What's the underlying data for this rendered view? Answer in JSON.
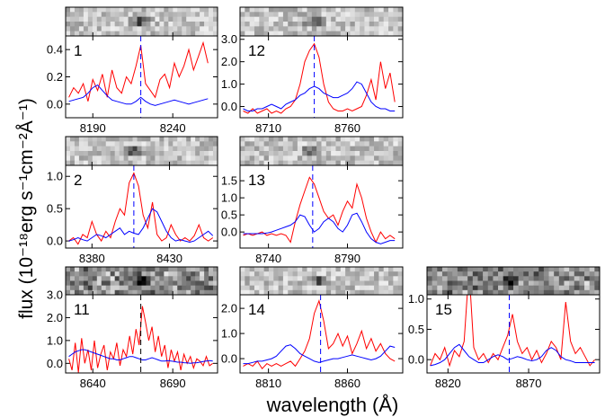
{
  "xlabel": "wavelength (Å)",
  "ylabel": "flux (10⁻¹⁸erg s⁻¹cm⁻²Å⁻¹)",
  "chart_data": [
    {
      "type": "line",
      "title": "1",
      "x": [
        8175,
        8178,
        8181,
        8184,
        8187,
        8190,
        8193,
        8196,
        8199,
        8202,
        8205,
        8208,
        8211,
        8214,
        8217,
        8220,
        8223,
        8226,
        8229,
        8232,
        8235,
        8238,
        8241,
        8244,
        8247,
        8250,
        8253,
        8256,
        8259,
        8262
      ],
      "series": [
        {
          "color": "#ff0000",
          "values": [
            0.05,
            0.12,
            0.08,
            0.15,
            0.02,
            0.18,
            0.1,
            0.22,
            0.05,
            0.25,
            0.12,
            0.08,
            0.2,
            0.15,
            0.28,
            0.43,
            0.15,
            0.1,
            0.05,
            0.18,
            0.22,
            0.12,
            0.3,
            0.2,
            0.28,
            0.4,
            0.25,
            0.35,
            0.45,
            0.3
          ]
        },
        {
          "color": "#0000ff",
          "values": [
            0.02,
            0.03,
            0.04,
            0.05,
            0.08,
            0.12,
            0.14,
            0.1,
            0.06,
            0.03,
            0.02,
            0.01,
            0.0,
            0.0,
            0.02,
            0.05,
            0.02,
            0.0,
            -0.01,
            0.0,
            0.01,
            0.02,
            0.03,
            0.02,
            0.01,
            0.0,
            0.01,
            0.02,
            0.03,
            0.04
          ]
        }
      ],
      "xlim": [
        8173,
        8268
      ],
      "ylim": [
        -0.1,
        0.5
      ],
      "xticks": [
        8190,
        8240
      ],
      "yticks": [
        {
          "value": 0,
          "label": "0.0"
        },
        0.2,
        0.4
      ],
      "line_center": 8220,
      "line_color": "#0000ff"
    },
    {
      "type": "line",
      "title": "12",
      "x": [
        8694,
        8697,
        8700,
        8703,
        8706,
        8709,
        8712,
        8715,
        8718,
        8721,
        8724,
        8727,
        8730,
        8733,
        8736,
        8739,
        8742,
        8745,
        8748,
        8751,
        8754,
        8757,
        8760,
        8763,
        8766,
        8769,
        8772,
        8775,
        8778,
        8781,
        8784,
        8787,
        8790
      ],
      "series": [
        {
          "color": "#ff0000",
          "values": [
            -0.2,
            -0.3,
            -0.1,
            -0.3,
            -0.2,
            -0.1,
            -0.3,
            -0.2,
            -0.3,
            -0.1,
            0.0,
            0.3,
            1.0,
            2.0,
            2.5,
            2.8,
            2.2,
            1.0,
            0.2,
            -0.1,
            -0.2,
            -0.2,
            -0.1,
            -0.2,
            -0.1,
            0.0,
            0.5,
            1.2,
            0.3,
            2.0,
            0.8,
            1.5,
            0.2
          ]
        },
        {
          "color": "#0000ff",
          "values": [
            -0.1,
            -0.2,
            -0.2,
            -0.1,
            -0.1,
            0.0,
            0.1,
            0.0,
            -0.1,
            0.1,
            0.2,
            0.3,
            0.5,
            0.6,
            0.8,
            0.9,
            0.8,
            0.6,
            0.5,
            0.4,
            0.4,
            0.5,
            0.6,
            0.8,
            1.1,
            1.0,
            0.6,
            0.2,
            0.0,
            -0.1,
            -0.1,
            -0.2,
            -0.2
          ]
        }
      ],
      "xlim": [
        8692,
        8795
      ],
      "ylim": [
        -0.5,
        3.15
      ],
      "xticks": [
        8710,
        8760
      ],
      "yticks": [
        {
          "value": 0,
          "label": "0.0"
        },
        {
          "value": 1,
          "label": "1.0"
        },
        {
          "value": 2,
          "label": "2.0"
        },
        {
          "value": 3,
          "label": "3.0"
        }
      ],
      "line_center": 8739,
      "line_color": "#0000ff"
    },
    {
      "type": "line",
      "title": "2",
      "x": [
        8365,
        8368,
        8371,
        8374,
        8377,
        8380,
        8383,
        8386,
        8389,
        8392,
        8395,
        8398,
        8401,
        8404,
        8407,
        8410,
        8413,
        8416,
        8419,
        8422,
        8425,
        8428,
        8431,
        8434,
        8437,
        8440,
        8443,
        8446,
        8449,
        8452,
        8455,
        8458
      ],
      "series": [
        {
          "color": "#ff0000",
          "values": [
            0.0,
            0.05,
            -0.05,
            0.1,
            0.05,
            0.3,
            0.1,
            0.0,
            0.15,
            0.05,
            0.3,
            0.5,
            0.4,
            0.9,
            1.05,
            0.85,
            0.4,
            0.2,
            0.6,
            0.1,
            0.0,
            0.05,
            0.25,
            0.1,
            0.0,
            0.05,
            0.0,
            0.08,
            0.25,
            0.05,
            0.0,
            0.05
          ]
        },
        {
          "color": "#0000ff",
          "values": [
            0.0,
            0.02,
            0.05,
            0.02,
            0.0,
            0.05,
            0.1,
            0.08,
            0.05,
            0.1,
            0.15,
            0.2,
            0.1,
            0.15,
            0.12,
            0.1,
            0.2,
            0.35,
            0.5,
            0.45,
            0.3,
            0.15,
            0.05,
            0.0,
            0.02,
            0.0,
            -0.02,
            0.0,
            0.05,
            0.1,
            0.15,
            0.08
          ]
        }
      ],
      "xlim": [
        8363,
        8461
      ],
      "ylim": [
        -0.11,
        1.17
      ],
      "xticks": [
        8380,
        8430
      ],
      "yticks": [
        {
          "value": 0,
          "label": "0.0"
        },
        0.5,
        {
          "value": 1,
          "label": "1.0"
        }
      ],
      "line_center": 8407,
      "line_color": "#0000ff"
    },
    {
      "type": "line",
      "title": "13",
      "x": [
        8724,
        8727,
        8730,
        8733,
        8736,
        8739,
        8742,
        8745,
        8748,
        8751,
        8754,
        8757,
        8760,
        8763,
        8766,
        8769,
        8772,
        8775,
        8778,
        8781,
        8784,
        8787,
        8790,
        8793,
        8796,
        8799,
        8802,
        8805,
        8808,
        8811,
        8814,
        8817,
        8820
      ],
      "series": [
        {
          "color": "#ff0000",
          "values": [
            -0.1,
            -0.05,
            -0.1,
            -0.05,
            0.0,
            -0.1,
            -0.05,
            -0.1,
            -0.05,
            -0.1,
            -0.3,
            0.3,
            0.8,
            1.2,
            1.6,
            1.4,
            1.0,
            0.6,
            0.4,
            0.5,
            0.2,
            0.6,
            0.9,
            0.7,
            1.4,
            1.0,
            0.4,
            0.0,
            -0.3,
            0.0,
            -0.2,
            -0.1,
            -0.2
          ]
        },
        {
          "color": "#0000ff",
          "values": [
            -0.05,
            -0.05,
            -0.05,
            -0.05,
            -0.05,
            -0.03,
            0.0,
            0.05,
            0.1,
            0.15,
            0.2,
            0.3,
            0.5,
            0.45,
            0.2,
            0.0,
            0.1,
            0.3,
            0.4,
            0.3,
            0.1,
            0.0,
            0.2,
            0.5,
            0.55,
            0.3,
            0.0,
            -0.2,
            -0.3,
            -0.35,
            -0.3,
            -0.25,
            -0.25
          ]
        }
      ],
      "xlim": [
        8722,
        8825
      ],
      "ylim": [
        -0.47,
        1.95
      ],
      "xticks": [
        8740,
        8790
      ],
      "yticks": [
        {
          "value": 0,
          "label": "0.0"
        },
        0.5,
        {
          "value": 1,
          "label": "1.0"
        },
        1.5
      ],
      "line_center": 8768,
      "line_color": "#0000ff"
    },
    {
      "type": "line",
      "title": "11",
      "x": [
        8625,
        8627,
        8629,
        8631,
        8633,
        8635,
        8637,
        8639,
        8641,
        8643,
        8645,
        8647,
        8649,
        8651,
        8653,
        8655,
        8657,
        8659,
        8661,
        8663,
        8665,
        8667,
        8669,
        8671,
        8673,
        8675,
        8677,
        8679,
        8681,
        8683,
        8685,
        8687,
        8689,
        8691,
        8693,
        8695,
        8697,
        8699,
        8701,
        8703,
        8705,
        8707,
        8709,
        8711,
        8713,
        8715
      ],
      "series": [
        {
          "color": "#ff0000",
          "values": [
            0.2,
            -0.3,
            0.9,
            -0.4,
            1.1,
            0.0,
            0.6,
            -0.3,
            1.0,
            -0.2,
            0.4,
            0.8,
            -0.3,
            0.5,
            0.2,
            0.9,
            -0.1,
            0.6,
            0.3,
            1.2,
            0.4,
            1.5,
            0.8,
            2.5,
            1.8,
            1.0,
            1.6,
            0.5,
            1.2,
            0.3,
            0.8,
            -0.2,
            0.6,
            0.1,
            0.5,
            -0.3,
            0.4,
            0.0,
            0.3,
            -0.2,
            0.2,
            0.1,
            -0.1,
            0.3,
            -0.1,
            0.0
          ]
        },
        {
          "color": "#0000ff",
          "values": [
            0.3,
            0.4,
            0.5,
            0.55,
            0.6,
            0.6,
            0.55,
            0.5,
            0.45,
            0.4,
            0.35,
            0.3,
            0.25,
            0.2,
            0.2,
            0.15,
            0.15,
            0.2,
            0.25,
            0.3,
            0.3,
            0.25,
            0.2,
            0.15,
            0.15,
            0.2,
            0.25,
            0.2,
            0.15,
            0.1,
            0.1,
            0.12,
            0.1,
            0.08,
            0.05,
            0.05,
            0.03,
            0.02,
            0.0,
            0.02,
            0.03,
            0.05,
            0.08,
            0.1,
            0.12,
            0.1
          ]
        }
      ],
      "xlim": [
        8623,
        8718
      ],
      "ylim": [
        -0.42,
        3.0
      ],
      "xticks": [
        8640,
        8690
      ],
      "yticks": [
        {
          "value": 0,
          "label": "0.0"
        },
        {
          "value": 1,
          "label": "1.0"
        },
        {
          "value": 2,
          "label": "2.0"
        },
        {
          "value": 3,
          "label": "3.0"
        }
      ],
      "line_center": 8670,
      "line_color": "#000000"
    },
    {
      "type": "line",
      "title": "14",
      "x": [
        8794,
        8797,
        8800,
        8803,
        8806,
        8809,
        8812,
        8815,
        8818,
        8821,
        8824,
        8827,
        8830,
        8833,
        8836,
        8839,
        8842,
        8845,
        8848,
        8851,
        8854,
        8857,
        8860,
        8863,
        8866,
        8869,
        8872,
        8875,
        8878,
        8881,
        8884,
        8887,
        8890
      ],
      "series": [
        {
          "color": "#ff0000",
          "values": [
            -0.3,
            -0.2,
            -0.3,
            -0.1,
            -0.4,
            -0.2,
            -0.3,
            -0.2,
            -0.3,
            -0.2,
            -0.1,
            -0.3,
            0.0,
            0.3,
            0.8,
            1.8,
            2.3,
            1.5,
            0.4,
            0.6,
            1.0,
            0.5,
            0.9,
            0.2,
            0.6,
            1.1,
            0.4,
            0.8,
            0.3,
            0.6,
            0.2,
            0.0,
            -0.1
          ]
        },
        {
          "color": "#0000ff",
          "values": [
            -0.2,
            -0.2,
            -0.15,
            -0.1,
            -0.1,
            -0.05,
            0.0,
            0.1,
            0.3,
            0.5,
            0.55,
            0.4,
            0.2,
            0.1,
            0.0,
            -0.1,
            -0.15,
            -0.1,
            -0.05,
            0.0,
            0.0,
            0.05,
            0.1,
            0.15,
            0.1,
            0.05,
            0.0,
            -0.05,
            0.0,
            0.1,
            0.3,
            0.5,
            0.45
          ]
        }
      ],
      "xlim": [
        8792,
        8895
      ],
      "ylim": [
        -0.57,
        2.54
      ],
      "xticks": [
        8810,
        8860
      ],
      "yticks": [
        {
          "value": 0,
          "label": "0.0"
        },
        {
          "value": 1,
          "label": "1.0"
        },
        {
          "value": 2,
          "label": "2.0"
        }
      ],
      "line_center": 8843,
      "line_color": "#0000ff"
    },
    {
      "type": "line",
      "title": "15",
      "x": [
        8809,
        8812,
        8815,
        8818,
        8821,
        8824,
        8827,
        8830,
        8833,
        8836,
        8839,
        8842,
        8845,
        8848,
        8851,
        8854,
        8857,
        8860,
        8863,
        8866,
        8869,
        8872,
        8875,
        8878,
        8881,
        8884,
        8887,
        8890,
        8893,
        8896,
        8899,
        8902,
        8905,
        8908,
        8911
      ],
      "series": [
        {
          "color": "#ff0000",
          "values": [
            -0.1,
            0.1,
            0.0,
            0.2,
            -0.1,
            0.15,
            0.05,
            0.3,
            1.5,
            0.2,
            0.0,
            0.1,
            -0.05,
            0.1,
            0.0,
            0.2,
            0.4,
            0.75,
            0.3,
            0.1,
            0.2,
            0.0,
            0.15,
            -0.05,
            0.1,
            0.3,
            0.2,
            0.0,
            0.95,
            0.3,
            0.1,
            0.2,
            0.05,
            -0.1,
            0.0
          ]
        },
        {
          "color": "#0000ff",
          "values": [
            -0.1,
            -0.08,
            -0.05,
            0.0,
            0.1,
            0.2,
            0.25,
            0.15,
            0.05,
            0.0,
            -0.05,
            -0.05,
            0.0,
            0.05,
            0.08,
            0.05,
            0.0,
            0.02,
            0.05,
            0.03,
            0.0,
            -0.02,
            0.0,
            0.05,
            0.15,
            0.2,
            0.15,
            0.05,
            0.0,
            -0.02,
            -0.05,
            -0.05,
            -0.05,
            -0.05,
            -0.05
          ]
        }
      ],
      "xlim": [
        8807,
        8914
      ],
      "ylim": [
        -0.22,
        1.07
      ],
      "xticks": [
        8820,
        8870
      ],
      "yticks": [
        {
          "value": 0,
          "label": "0.0"
        },
        0.5,
        {
          "value": 1,
          "label": "1.0"
        }
      ],
      "line_center": 8858,
      "line_color": "#0000ff"
    }
  ]
}
